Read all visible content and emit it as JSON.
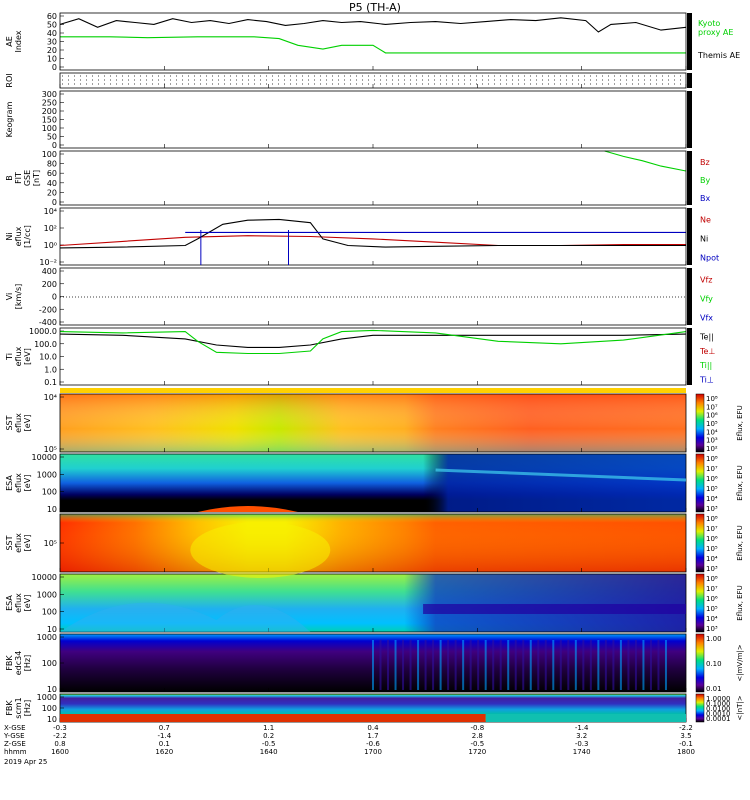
{
  "title": "P5 (TH-A)",
  "date": "2019 Apr 25",
  "colors": {
    "black": "#000000",
    "green": "#00d000",
    "red": "#c00000",
    "blue": "#0000c0"
  },
  "time_ticks": [
    "1600",
    "1620",
    "1640",
    "1700",
    "1720",
    "1740",
    "1800"
  ],
  "position_rows": [
    {
      "label": "X-GSE",
      "values": [
        "-0.3",
        "0.7",
        "1.1",
        "0.4",
        "-0.8",
        "-1.4",
        "-2.2"
      ]
    },
    {
      "label": "Y-GSE",
      "values": [
        "-2.2",
        "-1.4",
        "0.2",
        "1.7",
        "2.8",
        "3.2",
        "3.5"
      ]
    },
    {
      "label": "Z-GSE",
      "values": [
        "0.8",
        "0.1",
        "-0.5",
        "-0.6",
        "-0.5",
        "-0.3",
        "-0.1"
      ]
    },
    {
      "label": "hhmm",
      "values": [
        "1600",
        "1620",
        "1640",
        "1700",
        "1720",
        "1740",
        "1800"
      ]
    }
  ],
  "colorbars": [
    {
      "title": "Eflux, EFU",
      "labels": [
        "10⁸",
        "10⁷",
        "10⁶",
        "10⁵",
        "10⁴",
        "10³",
        "10²"
      ]
    },
    {
      "title": "Eflux, EFU",
      "labels": [
        "10⁸",
        "10⁷",
        "10⁶",
        "10⁵",
        "10⁴",
        "10³"
      ]
    },
    {
      "title": "Eflux, EFU",
      "labels": [
        "10⁸",
        "10⁷",
        "10⁶",
        "10⁵",
        "10⁴",
        "10³"
      ]
    },
    {
      "title": "Eflux, EFU",
      "labels": [
        "10⁸",
        "10⁷",
        "10⁶",
        "10⁵",
        "10⁴",
        "10³"
      ]
    },
    {
      "title": "<|mV/m|>",
      "labels": [
        "1.00",
        "0.10",
        "0.01"
      ]
    },
    {
      "title": "<|nT|>",
      "labels": [
        "1.0000",
        "0.1000",
        "0.0100",
        "0.0010",
        "0.0001"
      ]
    }
  ],
  "chart_data": [
    {
      "type": "line",
      "ylabel": "AE Index",
      "yticks": [
        "60",
        "50",
        "40",
        "30",
        "20",
        "10",
        "0"
      ],
      "ylim": [
        0,
        60
      ],
      "series": [
        {
          "name": "Kyoto proxy AE",
          "color": "#00d000",
          "x": [
            0,
            0.08,
            0.14,
            0.22,
            0.31,
            0.35,
            0.38,
            0.42,
            0.45,
            0.5,
            0.52,
            1
          ],
          "y": [
            35,
            35,
            34,
            35,
            35,
            33,
            26,
            22,
            26,
            26,
            18,
            18
          ]
        },
        {
          "name": "Themis AE",
          "color": "#000000",
          "x": [
            0,
            0.03,
            0.06,
            0.09,
            0.12,
            0.15,
            0.18,
            0.21,
            0.24,
            0.27,
            0.3,
            0.33,
            0.36,
            0.39,
            0.42,
            0.45,
            0.48,
            0.52,
            0.56,
            0.6,
            0.64,
            0.68,
            0.72,
            0.76,
            0.8,
            0.84,
            0.86,
            0.88,
            0.92,
            0.96,
            1
          ],
          "y": [
            48,
            54,
            45,
            52,
            50,
            48,
            54,
            50,
            52,
            49,
            53,
            51,
            47,
            49,
            52,
            50,
            51,
            48,
            50,
            51,
            49,
            51,
            53,
            52,
            55,
            52,
            40,
            48,
            50,
            42,
            45
          ]
        }
      ]
    },
    {
      "type": "line",
      "ylabel": "ROI",
      "yticks": [],
      "ylim": [
        0,
        1
      ],
      "series": []
    },
    {
      "type": "line",
      "ylabel": "Keogram",
      "yticks": [
        "300",
        "250",
        "200",
        "150",
        "100",
        "50",
        "0"
      ],
      "ylim": [
        0,
        300
      ],
      "series": []
    },
    {
      "type": "line",
      "ylabel": "B FIT GSE [nT]",
      "yticks": [
        "100",
        "80",
        "60",
        "40",
        "20",
        "0"
      ],
      "ylim": [
        0,
        100
      ],
      "series": [
        {
          "name": "Bz",
          "color": "#c00000",
          "x": [],
          "y": []
        },
        {
          "name": "By",
          "color": "#00d000",
          "x": [
            0.87,
            0.9,
            0.93,
            0.96,
            1
          ],
          "y": [
            100,
            90,
            82,
            72,
            63
          ]
        },
        {
          "name": "Bx",
          "color": "#0000c0",
          "x": [],
          "y": []
        }
      ]
    },
    {
      "type": "line",
      "ylabel": "Ni eflux [1/cc]",
      "yticks": [
        "10⁴",
        "10²",
        "10⁰",
        "10⁻²"
      ],
      "ylim": [
        -3,
        4
      ],
      "yscale": "log",
      "series": [
        {
          "name": "Ne",
          "color": "#c00000",
          "x": [
            0,
            0.1,
            0.2,
            0.3,
            0.4,
            0.5,
            0.6,
            0.7,
            0.8,
            0.9,
            1
          ],
          "y": [
            -0.6,
            -0.1,
            0.4,
            0.6,
            0.5,
            0.2,
            -0.2,
            -0.6,
            -0.6,
            -0.5,
            -0.5
          ]
        },
        {
          "name": "Ni",
          "color": "#000000",
          "x": [
            0,
            0.1,
            0.2,
            0.22,
            0.26,
            0.3,
            0.35,
            0.4,
            0.42,
            0.46,
            0.52,
            0.6,
            0.7,
            0.8,
            0.9,
            1
          ],
          "y": [
            -0.9,
            -0.8,
            -0.6,
            0.2,
            2.0,
            2.5,
            2.6,
            2.2,
            0.2,
            -0.6,
            -0.8,
            -0.7,
            -0.6,
            -0.6,
            -0.6,
            -0.6
          ]
        },
        {
          "name": "Npot",
          "color": "#0000c0",
          "x": [
            0.2,
            0.3,
            0.4,
            0.5,
            0.6,
            0.7,
            0.8,
            0.9,
            1
          ],
          "y": [
            1,
            1,
            1,
            1,
            1,
            1,
            1,
            1,
            1
          ]
        }
      ]
    },
    {
      "type": "line",
      "ylabel": "Vi [km/s]",
      "yticks": [
        "400",
        "200",
        "0",
        "-200",
        "-400"
      ],
      "ylim": [
        -400,
        400
      ],
      "series": [
        {
          "name": "Vfz",
          "color": "#c00000",
          "x": [],
          "y": []
        },
        {
          "name": "Vfy",
          "color": "#00d000",
          "x": [],
          "y": []
        },
        {
          "name": "Vfx",
          "color": "#0000c0",
          "x": [],
          "y": []
        }
      ]
    },
    {
      "type": "line",
      "ylabel": "Ti eflux [eV]",
      "yticks": [
        "1000.0",
        "100.0",
        "10.0",
        "1.0",
        "0.1"
      ],
      "ylim": [
        -1.2,
        3.5
      ],
      "yscale": "log",
      "series": [
        {
          "name": "Te||",
          "color": "#000000",
          "x": [
            0,
            0.1,
            0.2,
            0.25,
            0.3,
            0.35,
            0.4,
            0.45,
            0.5,
            0.6,
            0.7,
            0.8,
            0.9,
            1
          ],
          "y": [
            3.0,
            2.9,
            2.6,
            2.1,
            1.9,
            1.9,
            2.1,
            2.6,
            2.9,
            2.9,
            2.9,
            2.9,
            2.9,
            3.0
          ]
        },
        {
          "name": "Te⊥",
          "color": "#c00000",
          "x": [],
          "y": []
        },
        {
          "name": "Ti||",
          "color": "#00d000",
          "x": [
            0,
            0.1,
            0.2,
            0.22,
            0.25,
            0.3,
            0.35,
            0.4,
            0.42,
            0.45,
            0.5,
            0.6,
            0.7,
            0.8,
            0.9,
            1
          ],
          "y": [
            3.2,
            3.1,
            3.2,
            2.4,
            1.5,
            1.4,
            1.4,
            1.6,
            2.6,
            3.2,
            3.3,
            3.1,
            2.4,
            2.2,
            2.5,
            3.2
          ]
        },
        {
          "name": "Ti⊥",
          "color": "#0000c0",
          "x": [],
          "y": []
        }
      ]
    },
    {
      "type": "heatmap",
      "ylabel": "SST eflux [eV]",
      "yticks": [
        "10⁴",
        "10⁵"
      ]
    },
    {
      "type": "heatmap",
      "ylabel": "ESA eflux [eV]",
      "yticks": [
        "10000",
        "1000",
        "100",
        "10"
      ]
    },
    {
      "type": "heatmap",
      "ylabel": "SST eflux [eV]",
      "yticks": [
        "10⁵"
      ]
    },
    {
      "type": "heatmap",
      "ylabel": "ESA eflux [eV]",
      "yticks": [
        "10000",
        "1000",
        "100",
        "10"
      ]
    },
    {
      "type": "heatmap",
      "ylabel": "FBK edc34 [Hz]",
      "yticks": [
        "1000",
        "100",
        "10"
      ]
    },
    {
      "type": "heatmap",
      "ylabel": "FBK scm1 [Hz]",
      "yticks": [
        "1000",
        "100",
        "10"
      ]
    }
  ]
}
